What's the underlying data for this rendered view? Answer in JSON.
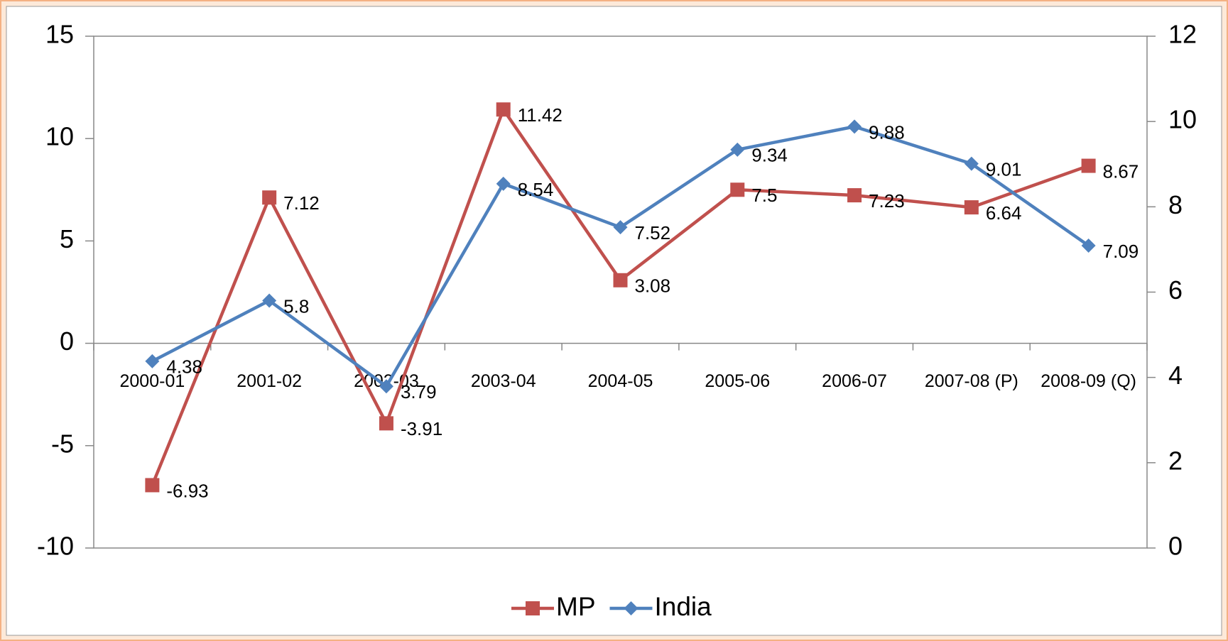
{
  "chart_data": {
    "type": "line",
    "categories": [
      "2000-01",
      "2001-02",
      "2002-03",
      "2003-04",
      "2004-05",
      "2005-06",
      "2006-07",
      "2007-08 (P)",
      "2008-09 (Q)"
    ],
    "series": [
      {
        "name": "MP",
        "color": "#c0504d",
        "marker": "square",
        "values": [
          -6.93,
          7.12,
          -3.91,
          11.42,
          3.08,
          7.5,
          7.23,
          6.64,
          8.67
        ]
      },
      {
        "name": "India",
        "color": "#4f81bd",
        "marker": "diamond",
        "axis": "y2",
        "values": [
          4.38,
          5.8,
          3.79,
          8.54,
          7.52,
          9.34,
          9.88,
          9.01,
          7.09
        ]
      }
    ],
    "ylim": [
      -10,
      15
    ],
    "yticks": [
      -10,
      -5,
      0,
      5,
      10,
      15
    ],
    "y2lim": [
      0,
      12
    ],
    "y2ticks": [
      0,
      2,
      4,
      6,
      8,
      10,
      12
    ],
    "legend": "bottom"
  }
}
